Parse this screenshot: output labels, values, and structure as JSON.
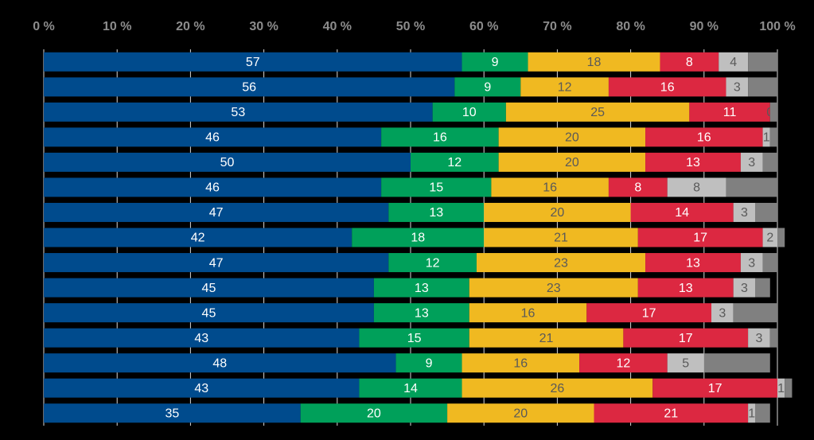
{
  "chart_data": {
    "type": "stacked-bar-horizontal",
    "categories": [
      null,
      null,
      null,
      null,
      null,
      null,
      null,
      null,
      null,
      null,
      null,
      null,
      null,
      null,
      null
    ],
    "series": [
      {
        "color": "#004b8d",
        "label_color": "#ffffff",
        "values": [
          57,
          56,
          53,
          46,
          50,
          46,
          47,
          42,
          47,
          45,
          45,
          43,
          48,
          43,
          35
        ]
      },
      {
        "color": "#00a05a",
        "label_color": "#ffffff",
        "values": [
          9,
          9,
          10,
          16,
          12,
          15,
          13,
          18,
          12,
          13,
          13,
          15,
          9,
          14,
          20
        ]
      },
      {
        "color": "#f0b921",
        "label_color": "#595959",
        "values": [
          18,
          12,
          25,
          20,
          20,
          16,
          20,
          21,
          23,
          23,
          16,
          21,
          16,
          26,
          20
        ]
      },
      {
        "color": "#dc2841",
        "label_color": "#ffffff",
        "values": [
          8,
          16,
          11,
          16,
          13,
          8,
          14,
          17,
          13,
          13,
          17,
          17,
          12,
          17,
          21
        ]
      },
      {
        "color": "#bfbfbf",
        "label_color": "#595959",
        "values": [
          4,
          3,
          0,
          1,
          3,
          8,
          3,
          2,
          3,
          3,
          3,
          3,
          5,
          1,
          1
        ]
      },
      {
        "color": "#808080",
        "labels": false,
        "values": [
          4,
          4,
          1,
          1,
          2,
          7,
          3,
          1,
          2,
          2,
          6,
          1,
          9,
          1,
          2
        ]
      }
    ],
    "xlim": [
      0,
      100
    ],
    "xticks": [
      {
        "value": 0,
        "label": "0 %"
      },
      {
        "value": 10,
        "label": "10 %"
      },
      {
        "value": 20,
        "label": "20 %"
      },
      {
        "value": 30,
        "label": "30 %"
      },
      {
        "value": 40,
        "label": "40 %"
      },
      {
        "value": 50,
        "label": "50 %"
      },
      {
        "value": 60,
        "label": "60 %"
      },
      {
        "value": 70,
        "label": "70 %"
      },
      {
        "value": 80,
        "label": "80 %"
      },
      {
        "value": 90,
        "label": "90 %"
      },
      {
        "value": 100,
        "label": "100 %"
      }
    ],
    "grid": true
  }
}
